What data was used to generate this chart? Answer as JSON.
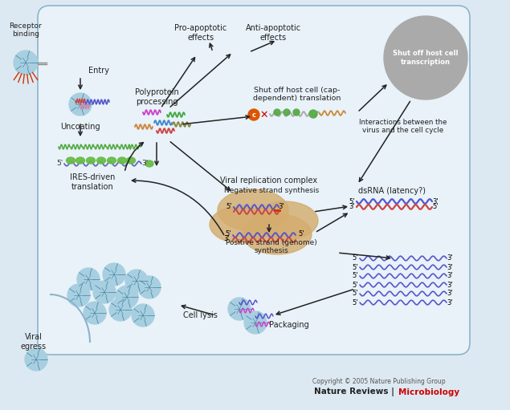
{
  "bg_outer": "#b5171b",
  "bg_inner": "#dde9f2",
  "copyright": "Copyright © 2005 Nature Publishing Group",
  "journal1": "Nature Reviews | ",
  "journal2": "Microbiology",
  "journal_color1": "#222222",
  "journal_color2": "#cc0000",
  "labels": {
    "receptor_binding": "Receptor\nbinding",
    "entry": "Entry",
    "uncoating": "Uncoating",
    "ires": "IRES-driven\ntranslation",
    "polyprotein": "Polyprotein\nprocessing",
    "pro_apoptotic": "Pro-apoptotic\neffects",
    "anti_apoptotic": "Anti-apoptotic\neffects",
    "shutoff": "Shut off host cell (cap-\ndependent) translation",
    "vrc": "Viral replication complex",
    "neg_strand": "Negative strand synthesis",
    "pos_strand": "Positive strand (genome)\nsynthesis",
    "dsrna": "dsRNA (latency?)",
    "packaging": "Packaging",
    "cell_lysis": "Cell lysis",
    "viral_egress": "Viral\negress",
    "shutoff_tx": "Shut off host cell\ntranscription",
    "interactions": "Interactions between the\nvirus and the cell cycle"
  }
}
